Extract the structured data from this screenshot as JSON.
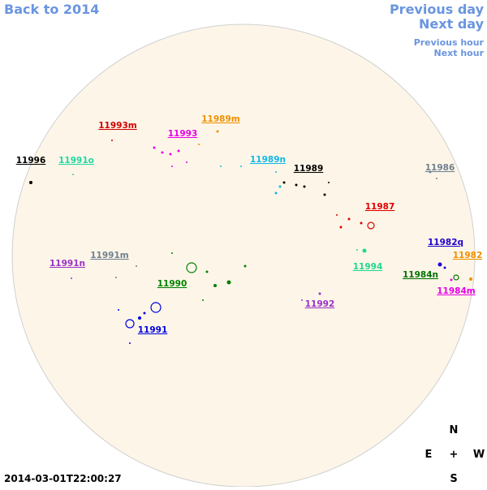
{
  "navigation": {
    "back": "Back to 2014",
    "previous_day": "Previous day",
    "next_day": "Next day",
    "previous_hour": "Previous hour",
    "next_hour": "Next hour"
  },
  "regions": [
    {
      "label": "11993m",
      "color": "#d00000"
    },
    {
      "label": "11989m",
      "color": "#f09000"
    },
    {
      "label": "11993",
      "color": "#e800e8"
    },
    {
      "label": "11996",
      "color": "#000000"
    },
    {
      "label": "11991o",
      "color": "#20d8a0"
    },
    {
      "label": "11989n",
      "color": "#10b8e8"
    },
    {
      "label": "11989",
      "color": "#000000"
    },
    {
      "label": "11986",
      "color": "#708090"
    },
    {
      "label": "11987",
      "color": "#e00000"
    },
    {
      "label": "11982q",
      "color": "#2000d0"
    },
    {
      "label": "11982",
      "color": "#f09000"
    },
    {
      "label": "11991m",
      "color": "#708090"
    },
    {
      "label": "11991n",
      "color": "#9a30c8"
    },
    {
      "label": "11994",
      "color": "#20d890"
    },
    {
      "label": "11984n",
      "color": "#007000"
    },
    {
      "label": "11990",
      "color": "#008000"
    },
    {
      "label": "11984m",
      "color": "#e800e8"
    },
    {
      "label": "11992",
      "color": "#9a30c8"
    },
    {
      "label": "11991",
      "color": "#0000e0"
    }
  ],
  "compass": {
    "north": "N",
    "east": "E",
    "center": "+",
    "west": "W",
    "south": "S"
  },
  "timestamp": "2014-03-01T22:00:27"
}
